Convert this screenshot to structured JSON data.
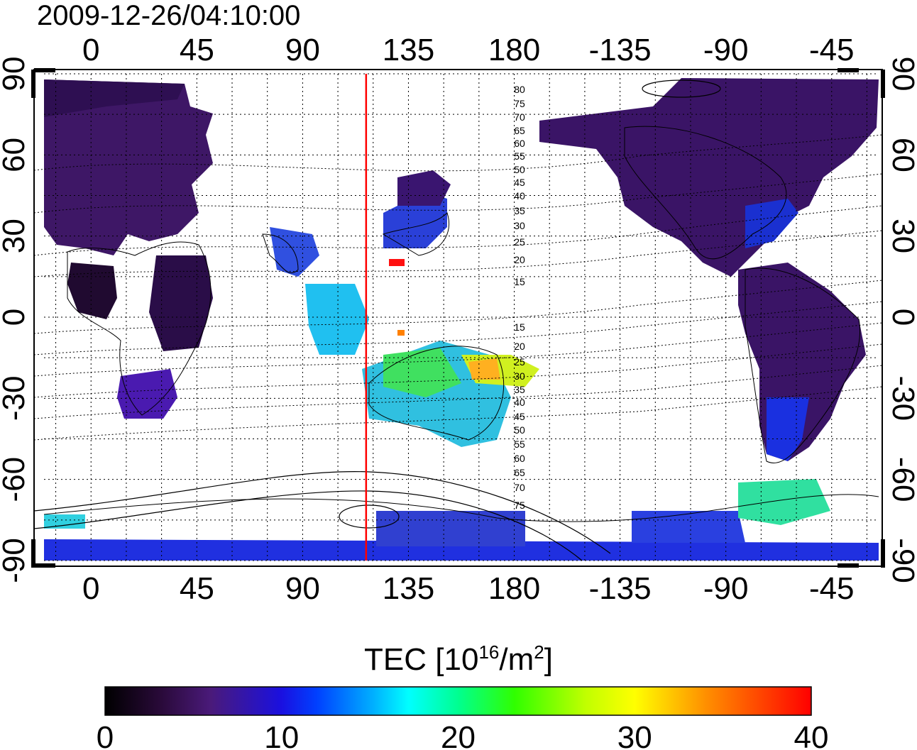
{
  "title": "2009-12-26/04:10:00",
  "map": {
    "top_lon_ticks": [
      "0",
      "45",
      "90",
      "135",
      "180",
      "-135",
      "-90",
      "-45"
    ],
    "bottom_lon_ticks": [
      "0",
      "45",
      "90",
      "135",
      "180",
      "-135",
      "-90",
      "-45"
    ],
    "left_lat_ticks": [
      "90",
      "60",
      "30",
      "0",
      "-30",
      "-60",
      "-90"
    ],
    "right_lat_ticks": [
      "90",
      "60",
      "30",
      "0",
      "-30",
      "-60",
      "-90"
    ],
    "lon_min": -20,
    "lon_max": 335,
    "lat_min": -90,
    "lat_max": 90,
    "grid": "dotted",
    "meridian_marker": {
      "lon": 117,
      "color": "#ff0000"
    },
    "contour_labels_north": [
      "80",
      "75",
      "70",
      "65",
      "60",
      "55",
      "50",
      "45",
      "40",
      "35",
      "30",
      "25",
      "20",
      "15"
    ],
    "contour_labels_south": [
      "15",
      "20",
      "25",
      "30",
      "35",
      "40",
      "45",
      "50",
      "55",
      "60",
      "65",
      "70",
      "75"
    ]
  },
  "colorbar": {
    "title_prefix": "TEC  [10",
    "title_sup1": "16",
    "title_mid": "/m",
    "title_sup2": "2",
    "title_suffix": "]",
    "ticks": [
      "0",
      "10",
      "20",
      "30",
      "40"
    ],
    "min": 0,
    "max": 40
  },
  "colors": {
    "scale": [
      "#000000",
      "#2a0a3a",
      "#4a1a7a",
      "#1a10c8",
      "#0040ff",
      "#0090ff",
      "#00e0ff",
      "#00ff90",
      "#30ff00",
      "#c0ff00",
      "#ffff00",
      "#ffa000",
      "#ff4000",
      "#ff0000"
    ]
  }
}
